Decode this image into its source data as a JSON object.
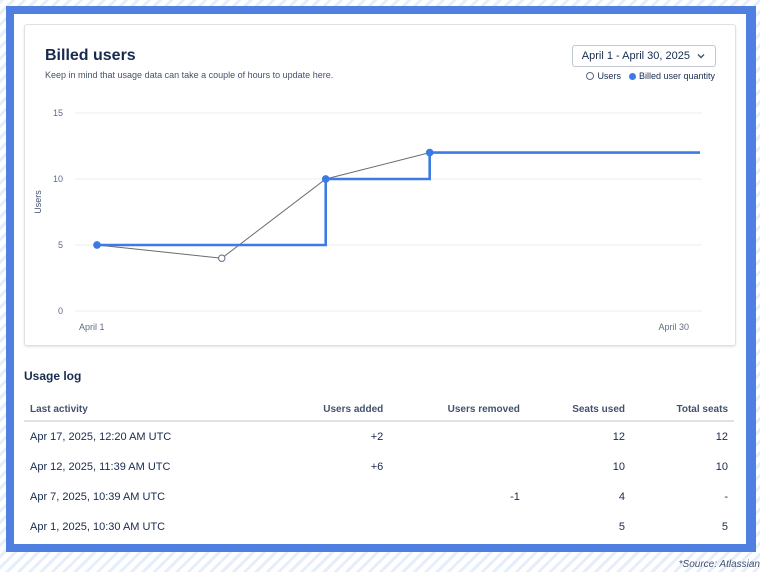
{
  "card": {
    "title": "Billed users",
    "subtitle": "Keep in mind that usage data can take a couple of hours to update here.",
    "date_range": "April 1 - April 30, 2025",
    "legend": [
      {
        "label": "Users",
        "marker": "open-circle"
      },
      {
        "label": "Billed user quantity",
        "marker": "filled-circle"
      }
    ]
  },
  "colors": {
    "accent": "#3b7be3",
    "frame": "#4f7fe0",
    "users_line": "#6b6b6b"
  },
  "chart_data": {
    "type": "line",
    "ylabel": "Users",
    "xlabel": "",
    "ylim": [
      0,
      15
    ],
    "yticks": [
      0,
      5,
      10,
      15
    ],
    "x_tick_labels": [
      "April 1",
      "April 30"
    ],
    "x_domain_days": [
      1,
      30
    ],
    "grid": true,
    "legend_position": "top-right",
    "series": [
      {
        "name": "Users",
        "style": "line-open-markers",
        "points": [
          {
            "day": 1,
            "value": 5
          },
          {
            "day": 7,
            "value": 4
          },
          {
            "day": 12,
            "value": 10
          },
          {
            "day": 17,
            "value": 12
          }
        ]
      },
      {
        "name": "Billed user quantity",
        "style": "step",
        "points": [
          {
            "day": 1,
            "value": 5
          },
          {
            "day": 12,
            "value": 10
          },
          {
            "day": 17,
            "value": 12
          },
          {
            "day": 30,
            "value": 12
          }
        ]
      }
    ]
  },
  "usage_log": {
    "title": "Usage log",
    "columns": [
      "Last activity",
      "Users added",
      "Users removed",
      "Seats used",
      "Total seats"
    ],
    "rows": [
      [
        "Apr 17, 2025, 12:20 AM UTC",
        "+2",
        "",
        "12",
        "12"
      ],
      [
        "Apr 12, 2025, 11:39 AM UTC",
        "+6",
        "",
        "10",
        "10"
      ],
      [
        "Apr 7, 2025, 10:39 AM UTC",
        "",
        "-1",
        "4",
        "-"
      ],
      [
        "Apr 1, 2025, 10:30 AM UTC",
        "",
        "",
        "5",
        "5"
      ]
    ]
  },
  "source": "*Source: Atlassian",
  "icons": {
    "dropdown": "chevron-down-icon"
  }
}
